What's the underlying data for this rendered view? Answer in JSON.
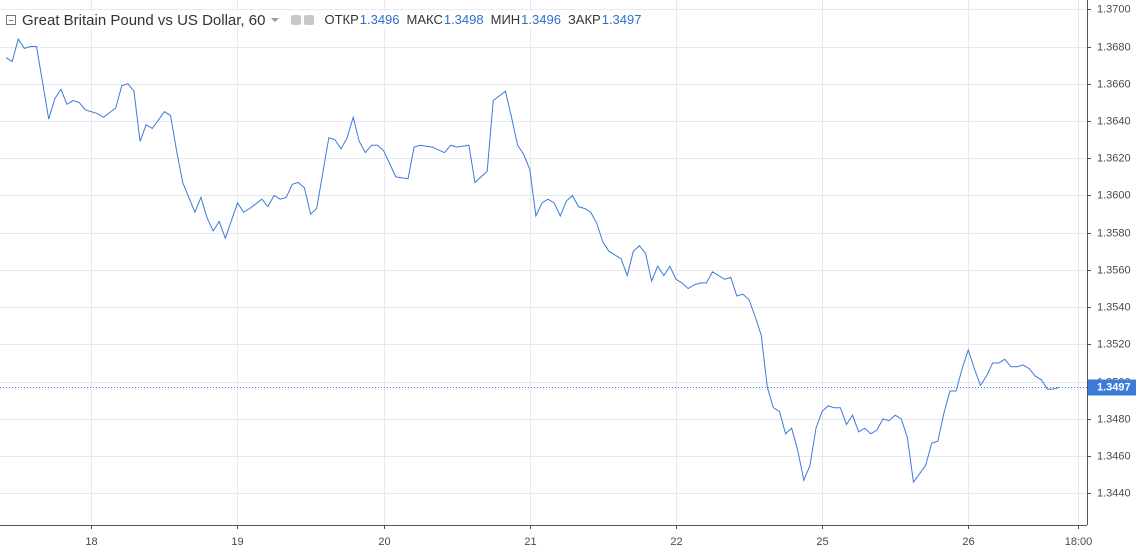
{
  "chart_data": {
    "type": "line",
    "title": "Great Britain Pound vs US Dollar, 60",
    "ohlc": [
      {
        "label": "ОТКР",
        "value": "1.3496"
      },
      {
        "label": "МАКС",
        "value": "1.3498"
      },
      {
        "label": "МИН",
        "value": "1.3496"
      },
      {
        "label": "ЗАКР",
        "value": "1.3497"
      }
    ],
    "color": "#3c7bd8",
    "x": [
      -14,
      -13,
      -12,
      -11,
      -10,
      -9,
      -7,
      -6,
      -5,
      -4,
      -3,
      -2,
      -1,
      1,
      2,
      4,
      5,
      6,
      7,
      8,
      9,
      10,
      12,
      13,
      14,
      15,
      17,
      18,
      19,
      20,
      21,
      22,
      24,
      25,
      26,
      28,
      29,
      30,
      31,
      32,
      33,
      34,
      35,
      36,
      37,
      39,
      40,
      41,
      42,
      43,
      44,
      45,
      46,
      47,
      48,
      50,
      52,
      53,
      54,
      56,
      58,
      59,
      60,
      62,
      63,
      65,
      66,
      68,
      69,
      70,
      71,
      72,
      73,
      74,
      75,
      76,
      77,
      78,
      79,
      80,
      81,
      82,
      83,
      84,
      85,
      86,
      87,
      88,
      89,
      90,
      91,
      92,
      93,
      94,
      95,
      96,
      97,
      98,
      99,
      100,
      101,
      102,
      103,
      104,
      105,
      106,
      107,
      108,
      109,
      110,
      111,
      112,
      113,
      114,
      115,
      116,
      117,
      118,
      119,
      120,
      121,
      122,
      123,
      124,
      125,
      126,
      127,
      128,
      129,
      130,
      131,
      132,
      133,
      134,
      135,
      137,
      138,
      139,
      140,
      141,
      142,
      143,
      144,
      145,
      146,
      147,
      148,
      149,
      150,
      151,
      152,
      153,
      154,
      155,
      156,
      157,
      158,
      159
    ],
    "values": [
      1.3674,
      1.3672,
      1.3684,
      1.3679,
      1.368,
      1.368,
      1.3641,
      1.3652,
      1.3657,
      1.3649,
      1.3651,
      1.365,
      1.3646,
      1.3644,
      1.3642,
      1.3647,
      1.3659,
      1.366,
      1.3656,
      1.3629,
      1.3638,
      1.3636,
      1.3645,
      1.3643,
      1.3624,
      1.3607,
      1.3591,
      1.3599,
      1.3588,
      1.3581,
      1.3586,
      1.3577,
      1.3596,
      1.3591,
      1.3593,
      1.3598,
      1.3594,
      1.36,
      1.3598,
      1.3599,
      1.3606,
      1.3607,
      1.3604,
      1.359,
      1.3593,
      1.3631,
      1.363,
      1.3625,
      1.3631,
      1.3642,
      1.3629,
      1.3623,
      1.3627,
      1.3627,
      1.3624,
      1.361,
      1.3609,
      1.3626,
      1.3627,
      1.3626,
      1.3623,
      1.3627,
      1.3626,
      1.3627,
      1.3607,
      1.3613,
      1.3651,
      1.3656,
      1.3642,
      1.3627,
      1.3622,
      1.3614,
      1.3589,
      1.3596,
      1.3598,
      1.3596,
      1.3589,
      1.3597,
      1.36,
      1.3594,
      1.3593,
      1.3591,
      1.3585,
      1.3575,
      1.357,
      1.3568,
      1.3566,
      1.3557,
      1.357,
      1.3573,
      1.3569,
      1.3554,
      1.3562,
      1.3557,
      1.3562,
      1.3555,
      1.3553,
      1.355,
      1.3552,
      1.3553,
      1.3553,
      1.3559,
      1.3557,
      1.3555,
      1.3556,
      1.3546,
      1.3547,
      1.3544,
      1.3535,
      1.3525,
      1.3497,
      1.3486,
      1.3484,
      1.3472,
      1.3475,
      1.3463,
      1.3447,
      1.3455,
      1.3475,
      1.3484,
      1.3487,
      1.3486,
      1.3486,
      1.3477,
      1.3482,
      1.3473,
      1.3475,
      1.3472,
      1.3474,
      1.348,
      1.3479,
      1.3482,
      1.348,
      1.347,
      1.3446,
      1.3455,
      1.3467,
      1.3468,
      1.3483,
      1.3495,
      1.3495,
      1.3507,
      1.3517,
      1.3507,
      1.3498,
      1.3503,
      1.351,
      1.351,
      1.3512,
      1.3508,
      1.3508,
      1.3509,
      1.3507,
      1.3503,
      1.3501,
      1.3496,
      1.3496,
      1.3497
    ],
    "last_value": 1.3497,
    "xlim": [
      -15,
      163.5
    ],
    "xticks": [
      {
        "value": 0,
        "label": "18"
      },
      {
        "value": 24,
        "label": "19"
      },
      {
        "value": 48,
        "label": "20"
      },
      {
        "value": 72,
        "label": "21"
      },
      {
        "value": 96,
        "label": "22"
      },
      {
        "value": 120,
        "label": "25"
      },
      {
        "value": 144,
        "label": "26"
      },
      {
        "value": 162,
        "label": "18:00"
      }
    ],
    "ylim": [
      1.3423,
      1.3705
    ],
    "yticks": [
      {
        "value": 1.344,
        "label": "1.3440"
      },
      {
        "value": 1.346,
        "label": "1.3460"
      },
      {
        "value": 1.348,
        "label": "1.3480"
      },
      {
        "value": 1.35,
        "label": "1.3500"
      },
      {
        "value": 1.352,
        "label": "1.3520"
      },
      {
        "value": 1.354,
        "label": "1.3540"
      },
      {
        "value": 1.356,
        "label": "1.3560"
      },
      {
        "value": 1.358,
        "label": "1.3580"
      },
      {
        "value": 1.36,
        "label": "1.3600"
      },
      {
        "value": 1.362,
        "label": "1.3620"
      },
      {
        "value": 1.364,
        "label": "1.3640"
      },
      {
        "value": 1.366,
        "label": "1.3660"
      },
      {
        "value": 1.368,
        "label": "1.3680"
      },
      {
        "value": 1.37,
        "label": "1.3700"
      }
    ],
    "grid": true
  }
}
